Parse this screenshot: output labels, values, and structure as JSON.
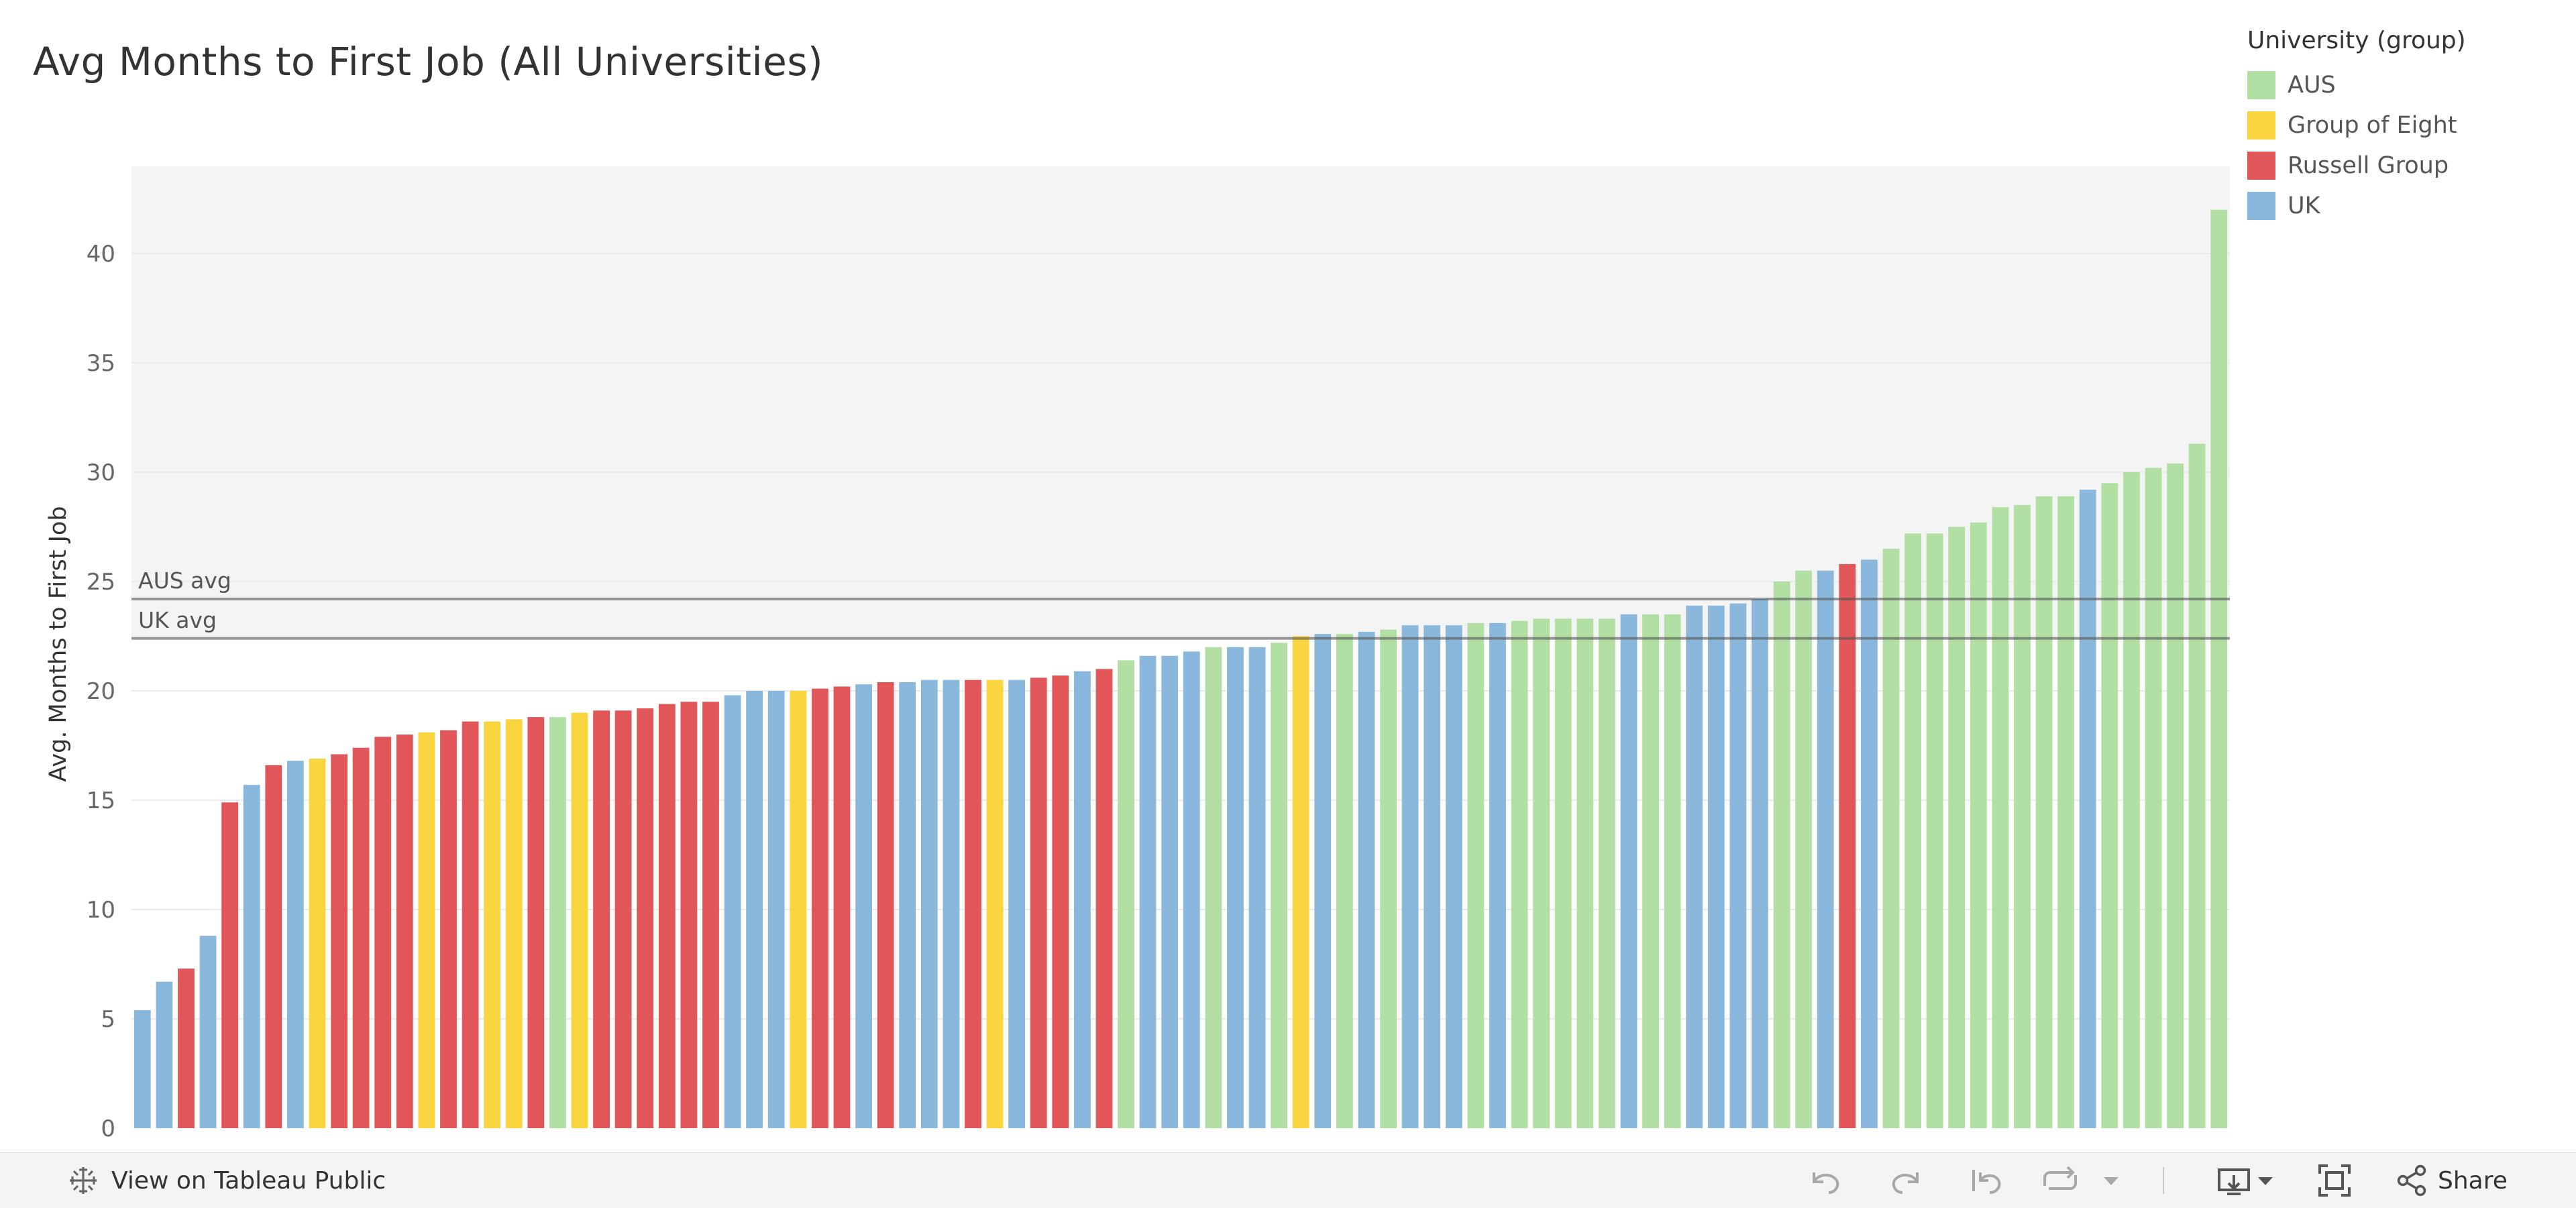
{
  "chart_data": {
    "type": "bar",
    "title": "Avg Months to First Job (All Universities)",
    "ylabel": "Avg. Months to First Job",
    "xlabel": "",
    "ylim": [
      0,
      42
    ],
    "yticks": [
      0,
      5,
      10,
      15,
      20,
      25,
      30,
      35,
      40
    ],
    "grid": true,
    "legend_title": "University (group)",
    "legend_position": "top-right",
    "legend": [
      {
        "name": "AUS",
        "color": "#b2e0a4"
      },
      {
        "name": "Group of Eight",
        "color": "#fad540"
      },
      {
        "name": "Russell Group",
        "color": "#e15759"
      },
      {
        "name": "UK",
        "color": "#8ab8dc"
      }
    ],
    "reference_lines": [
      {
        "label": "AUS avg",
        "value": 24.2
      },
      {
        "label": "UK avg",
        "value": 22.4
      }
    ],
    "bars": [
      {
        "group": "UK",
        "value": 5.4
      },
      {
        "group": "UK",
        "value": 6.7
      },
      {
        "group": "Russell Group",
        "value": 7.3
      },
      {
        "group": "UK",
        "value": 8.8
      },
      {
        "group": "Russell Group",
        "value": 14.9
      },
      {
        "group": "UK",
        "value": 15.7
      },
      {
        "group": "Russell Group",
        "value": 16.6
      },
      {
        "group": "UK",
        "value": 16.8
      },
      {
        "group": "Group of Eight",
        "value": 16.9
      },
      {
        "group": "Russell Group",
        "value": 17.1
      },
      {
        "group": "Russell Group",
        "value": 17.4
      },
      {
        "group": "Russell Group",
        "value": 17.9
      },
      {
        "group": "Russell Group",
        "value": 18.0
      },
      {
        "group": "Group of Eight",
        "value": 18.1
      },
      {
        "group": "Russell Group",
        "value": 18.2
      },
      {
        "group": "Russell Group",
        "value": 18.6
      },
      {
        "group": "Group of Eight",
        "value": 18.6
      },
      {
        "group": "Group of Eight",
        "value": 18.7
      },
      {
        "group": "Russell Group",
        "value": 18.8
      },
      {
        "group": "AUS",
        "value": 18.8
      },
      {
        "group": "Group of Eight",
        "value": 19.0
      },
      {
        "group": "Russell Group",
        "value": 19.1
      },
      {
        "group": "Russell Group",
        "value": 19.1
      },
      {
        "group": "Russell Group",
        "value": 19.2
      },
      {
        "group": "Russell Group",
        "value": 19.4
      },
      {
        "group": "Russell Group",
        "value": 19.5
      },
      {
        "group": "Russell Group",
        "value": 19.5
      },
      {
        "group": "UK",
        "value": 19.8
      },
      {
        "group": "UK",
        "value": 20.0
      },
      {
        "group": "UK",
        "value": 20.0
      },
      {
        "group": "Group of Eight",
        "value": 20.0
      },
      {
        "group": "Russell Group",
        "value": 20.1
      },
      {
        "group": "Russell Group",
        "value": 20.2
      },
      {
        "group": "UK",
        "value": 20.3
      },
      {
        "group": "Russell Group",
        "value": 20.4
      },
      {
        "group": "UK",
        "value": 20.4
      },
      {
        "group": "UK",
        "value": 20.5
      },
      {
        "group": "UK",
        "value": 20.5
      },
      {
        "group": "Russell Group",
        "value": 20.5
      },
      {
        "group": "Group of Eight",
        "value": 20.5
      },
      {
        "group": "UK",
        "value": 20.5
      },
      {
        "group": "Russell Group",
        "value": 20.6
      },
      {
        "group": "Russell Group",
        "value": 20.7
      },
      {
        "group": "UK",
        "value": 20.9
      },
      {
        "group": "Russell Group",
        "value": 21.0
      },
      {
        "group": "AUS",
        "value": 21.4
      },
      {
        "group": "UK",
        "value": 21.6
      },
      {
        "group": "UK",
        "value": 21.6
      },
      {
        "group": "UK",
        "value": 21.8
      },
      {
        "group": "AUS",
        "value": 22.0
      },
      {
        "group": "UK",
        "value": 22.0
      },
      {
        "group": "UK",
        "value": 22.0
      },
      {
        "group": "AUS",
        "value": 22.2
      },
      {
        "group": "Group of Eight",
        "value": 22.5
      },
      {
        "group": "UK",
        "value": 22.6
      },
      {
        "group": "AUS",
        "value": 22.6
      },
      {
        "group": "UK",
        "value": 22.7
      },
      {
        "group": "AUS",
        "value": 22.8
      },
      {
        "group": "UK",
        "value": 23.0
      },
      {
        "group": "UK",
        "value": 23.0
      },
      {
        "group": "UK",
        "value": 23.0
      },
      {
        "group": "AUS",
        "value": 23.1
      },
      {
        "group": "UK",
        "value": 23.1
      },
      {
        "group": "AUS",
        "value": 23.2
      },
      {
        "group": "AUS",
        "value": 23.3
      },
      {
        "group": "AUS",
        "value": 23.3
      },
      {
        "group": "AUS",
        "value": 23.3
      },
      {
        "group": "AUS",
        "value": 23.3
      },
      {
        "group": "UK",
        "value": 23.5
      },
      {
        "group": "AUS",
        "value": 23.5
      },
      {
        "group": "AUS",
        "value": 23.5
      },
      {
        "group": "UK",
        "value": 23.9
      },
      {
        "group": "UK",
        "value": 23.9
      },
      {
        "group": "UK",
        "value": 24.0
      },
      {
        "group": "UK",
        "value": 24.2
      },
      {
        "group": "AUS",
        "value": 25.0
      },
      {
        "group": "AUS",
        "value": 25.5
      },
      {
        "group": "UK",
        "value": 25.5
      },
      {
        "group": "Russell Group",
        "value": 25.8
      },
      {
        "group": "UK",
        "value": 26.0
      },
      {
        "group": "AUS",
        "value": 26.5
      },
      {
        "group": "AUS",
        "value": 27.2
      },
      {
        "group": "AUS",
        "value": 27.2
      },
      {
        "group": "AUS",
        "value": 27.5
      },
      {
        "group": "AUS",
        "value": 27.7
      },
      {
        "group": "AUS",
        "value": 28.4
      },
      {
        "group": "AUS",
        "value": 28.5
      },
      {
        "group": "AUS",
        "value": 28.9
      },
      {
        "group": "AUS",
        "value": 28.9
      },
      {
        "group": "UK",
        "value": 29.2
      },
      {
        "group": "AUS",
        "value": 29.5
      },
      {
        "group": "AUS",
        "value": 30.0
      },
      {
        "group": "AUS",
        "value": 30.2
      },
      {
        "group": "AUS",
        "value": 30.4
      },
      {
        "group": "AUS",
        "value": 31.3
      },
      {
        "group": "AUS",
        "value": 42.0
      }
    ]
  },
  "toolbar": {
    "view_label": "View on Tableau Public",
    "share_label": "Share",
    "icons": [
      "tableau-logo-icon",
      "undo-icon",
      "redo-icon",
      "revert-icon",
      "refresh-icon",
      "dropdown-icon",
      "download-icon",
      "fullscreen-icon",
      "share-icon"
    ]
  }
}
